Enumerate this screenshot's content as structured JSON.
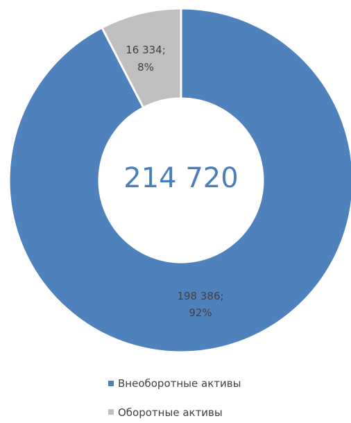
{
  "chart_data": {
    "type": "pie",
    "style": "donut",
    "total_label": "214 720",
    "total_color": "#4a7ebb",
    "categories": [
      "Внеоборотные активы",
      "Оборотные активы"
    ],
    "values": [
      198386,
      16334
    ],
    "percent": [
      92,
      8
    ],
    "data_labels": [
      {
        "value": "198 386;",
        "percent": "92%"
      },
      {
        "value": "16 334;",
        "percent": "8%"
      }
    ],
    "colors": [
      "#4f81bd",
      "#bfbfbf"
    ],
    "legend": {
      "placement": "bottom",
      "entries": [
        "Внеоборотные активы",
        "Оборотные активы"
      ]
    },
    "title": ""
  }
}
